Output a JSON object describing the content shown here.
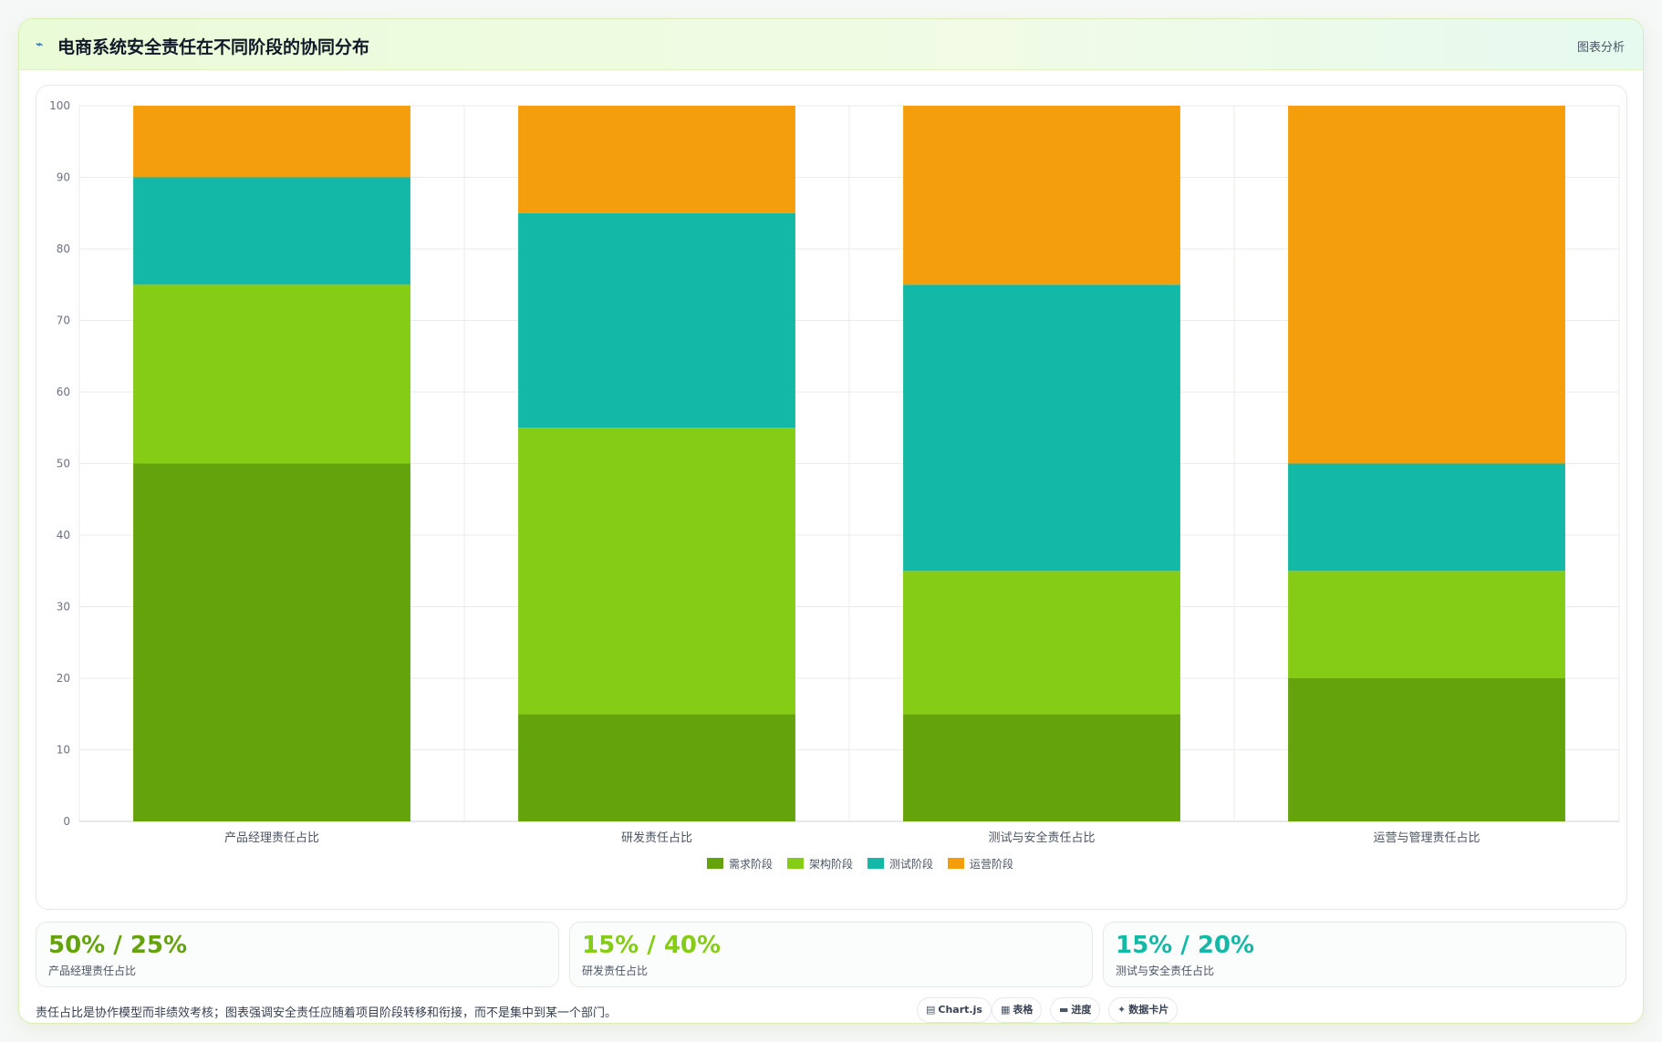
{
  "header": {
    "title": "电商系统安全责任在不同阶段的协同分布",
    "action_label": "图表分析",
    "title_icon": "trend-icon"
  },
  "chart_data": {
    "type": "bar",
    "stacked": true,
    "categories": [
      "产品经理责任占比",
      "研发责任占比",
      "测试与安全责任占比",
      "运营与管理责任占比"
    ],
    "series": [
      {
        "name": "需求阶段",
        "color": "#65a30d",
        "values": [
          50,
          15,
          15,
          20
        ]
      },
      {
        "name": "架构阶段",
        "color": "#84cc16",
        "values": [
          25,
          40,
          20,
          15
        ]
      },
      {
        "name": "测试阶段",
        "color": "#14b8a6",
        "values": [
          15,
          30,
          40,
          15
        ]
      },
      {
        "name": "运营阶段",
        "color": "#f59e0b",
        "values": [
          10,
          15,
          25,
          50
        ]
      }
    ],
    "ylim": [
      0,
      100
    ],
    "yticks": [
      0,
      10,
      20,
      30,
      40,
      50,
      60,
      70,
      80,
      90,
      100
    ],
    "grid": true,
    "legend_position": "bottom"
  },
  "stats": [
    {
      "value": "50% / 25%",
      "label": "产品经理责任占比",
      "color": "#65a30d"
    },
    {
      "value": "15% / 40%",
      "label": "研发责任占比",
      "color": "#84cc16"
    },
    {
      "value": "15% / 20%",
      "label": "测试与安全责任占比",
      "color": "#14b8a6"
    }
  ],
  "footer": {
    "note": "责任占比是协作模型而非绩效考核；图表强调安全责任应随着项目阶段转移和衔接，而不是集中到某一个部门。",
    "pills": [
      {
        "icon": "▤",
        "label": "Chart.js"
      },
      {
        "icon": "▦",
        "label": "表格"
      },
      {
        "icon": "▬",
        "label": "进度"
      },
      {
        "icon": "✦",
        "label": "数据卡片"
      }
    ]
  }
}
